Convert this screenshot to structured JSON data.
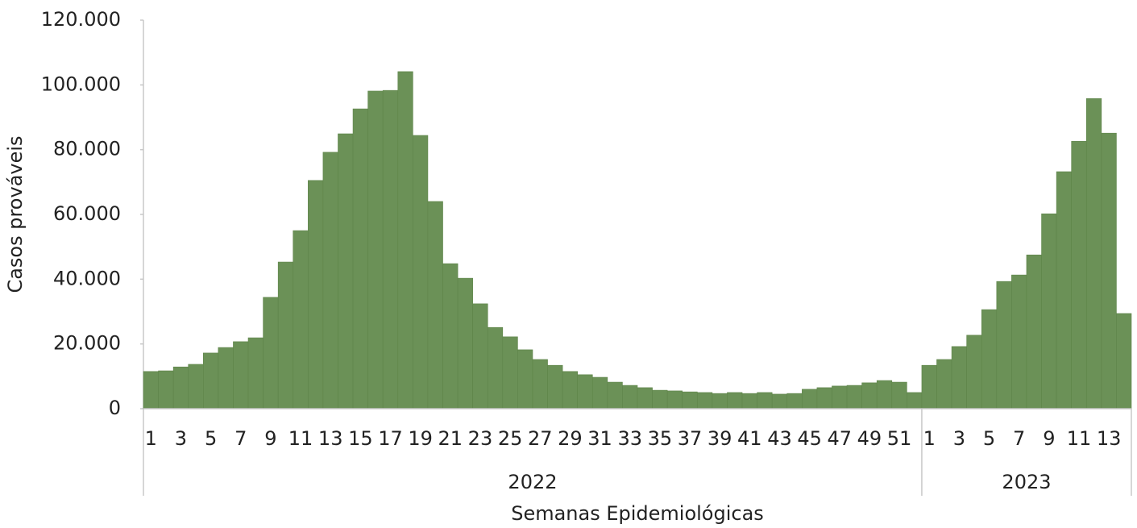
{
  "chart_data": {
    "type": "bar",
    "y_label": "Casos prováveis",
    "x_label": "Semanas Epidemiológicas",
    "color": "#6b9157",
    "ylim": [
      0,
      120000
    ],
    "yticks": [
      0,
      {
        "value": 20000,
        "label": "20.000"
      },
      {
        "value": 40000,
        "label": "40.000"
      },
      {
        "value": 60000,
        "label": "60.000"
      },
      {
        "value": 80000,
        "label": "80.000"
      },
      {
        "value": 100000,
        "label": "100.000"
      },
      {
        "value": 120000,
        "label": "120.000"
      }
    ],
    "groups": [
      {
        "name": "2022",
        "categories": [
          "1",
          null,
          "3",
          null,
          "5",
          null,
          "7",
          null,
          "9",
          null,
          "11",
          null,
          "13",
          null,
          "15",
          null,
          "17",
          null,
          "19",
          null,
          "21",
          null,
          "23",
          null,
          "25",
          null,
          "27",
          null,
          "29",
          null,
          "31",
          null,
          "33",
          null,
          "35",
          null,
          "37",
          null,
          "39",
          null,
          "41",
          null,
          "43",
          null,
          "45",
          null,
          "47",
          null,
          "49",
          null,
          "51",
          null
        ],
        "values": [
          11500,
          11700,
          12900,
          13700,
          17200,
          18900,
          20700,
          21900,
          34400,
          45300,
          55000,
          70500,
          79200,
          84900,
          92600,
          98100,
          98300,
          104100,
          84400,
          64000,
          44800,
          40300,
          32400,
          25100,
          22200,
          18200,
          15200,
          13400,
          11500,
          10500,
          9700,
          8200,
          7200,
          6500,
          5700,
          5500,
          5200,
          5000,
          4700,
          5000,
          4700,
          5000,
          4500,
          4700,
          6000,
          6500,
          7000,
          7200,
          8000,
          8700,
          8200,
          5000
        ]
      },
      {
        "name": "2023",
        "categories": [
          "1",
          null,
          "3",
          null,
          "5",
          null,
          "7",
          null,
          "9",
          null,
          "11",
          null,
          "13",
          null
        ],
        "values": [
          13400,
          15200,
          19200,
          22700,
          30600,
          39300,
          41300,
          47500,
          60200,
          73200,
          82600,
          95800,
          85100,
          29400
        ]
      }
    ]
  }
}
